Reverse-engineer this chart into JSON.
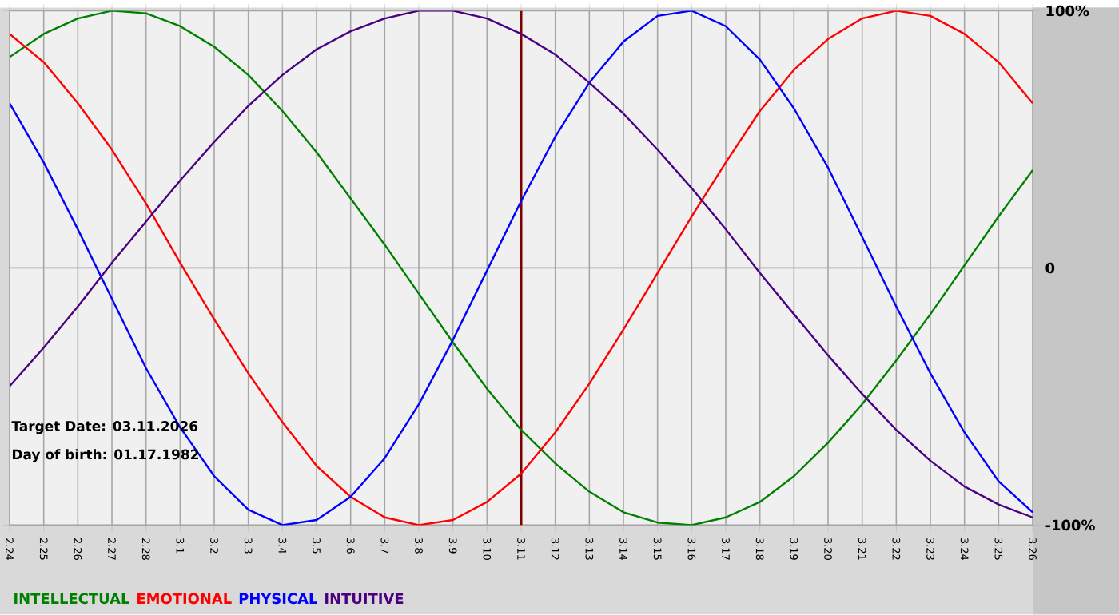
{
  "chart_data": {
    "type": "line",
    "categories": [
      "2.24",
      "2.25",
      "2.26",
      "2.27",
      "2.28",
      "3.1",
      "3.2",
      "3.3",
      "3.4",
      "3.5",
      "3.6",
      "3.7",
      "3.8",
      "3.9",
      "3.10",
      "3.11",
      "3.12",
      "3.13",
      "3.14",
      "3.15",
      "3.16",
      "3.17",
      "3.18",
      "3.19",
      "3.20",
      "3.21",
      "3.22",
      "3.23",
      "3.24",
      "3.25",
      "3.26"
    ],
    "series": [
      {
        "name": "INTELLECTUAL",
        "color": "#008000",
        "values": [
          82,
          91,
          97,
          100,
          99,
          94,
          86,
          75,
          61,
          45,
          27,
          9,
          -10,
          -29,
          -47,
          -63,
          -76,
          -87,
          -95,
          -99,
          -100,
          -97,
          -91,
          -81,
          -68,
          -53,
          -36,
          -18,
          1,
          20,
          38
        ]
      },
      {
        "name": "EMOTIONAL",
        "color": "#ff0000",
        "values": [
          91,
          80,
          64,
          46,
          25,
          2,
          -20,
          -41,
          -60,
          -77,
          -89,
          -97,
          -100,
          -98,
          -91,
          -80,
          -64,
          -45,
          -24,
          -2,
          20,
          41,
          61,
          77,
          89,
          97,
          100,
          98,
          91,
          80,
          64
        ]
      },
      {
        "name": "PHYSICAL",
        "color": "#0000ff",
        "values": [
          64,
          41,
          15,
          -12,
          -39,
          -62,
          -81,
          -94,
          -100,
          -98,
          -89,
          -74,
          -53,
          -28,
          -1,
          26,
          51,
          72,
          88,
          98,
          100,
          94,
          81,
          62,
          39,
          12,
          -15,
          -41,
          -64,
          -83,
          -95
        ]
      },
      {
        "name": "INTUITIVE",
        "color": "#4b0082",
        "values": [
          -46,
          -31,
          -15,
          2,
          18,
          34,
          49,
          63,
          75,
          85,
          92,
          97,
          100,
          100,
          97,
          91,
          83,
          72,
          60,
          46,
          31,
          15,
          -2,
          -18,
          -34,
          -49,
          -63,
          -75,
          -85,
          -92,
          -97
        ]
      }
    ],
    "ylim": [
      -100,
      100
    ],
    "yticks": [
      {
        "value": -100,
        "label": "-100%"
      },
      0,
      {
        "value": 100,
        "label": "100%"
      }
    ],
    "grid": true,
    "legend": "bottom",
    "ref_lines": [
      {
        "axis": "x",
        "value": "3.11",
        "color": "#800000"
      }
    ],
    "annotations": [
      "Target Date: 03.11.2026",
      "Day of birth: 01.17.1982"
    ]
  }
}
